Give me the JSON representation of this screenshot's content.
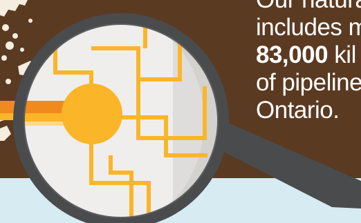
{
  "palette": {
    "brown": "#5b3a22",
    "sky": "#d6ebf2",
    "pipe_yellow": "#fbb528",
    "pipe_orange": "#f18a1e",
    "handle_grey": "#4a4b4d",
    "lens_light": "#efeeed",
    "lens_shade": "#d3d2cf",
    "map_cream": "#f4ede0"
  },
  "headline": {
    "line1": "Our natural",
    "line2": "includes m",
    "highlight": "83,000",
    "line3_rest": " kil",
    "line4": "of pipelines",
    "line5": "Ontario."
  },
  "icons": {
    "magnifier": "magnifying-glass-icon",
    "pipeline_network": "pipeline-network-icon",
    "map": "province-map-icon"
  }
}
